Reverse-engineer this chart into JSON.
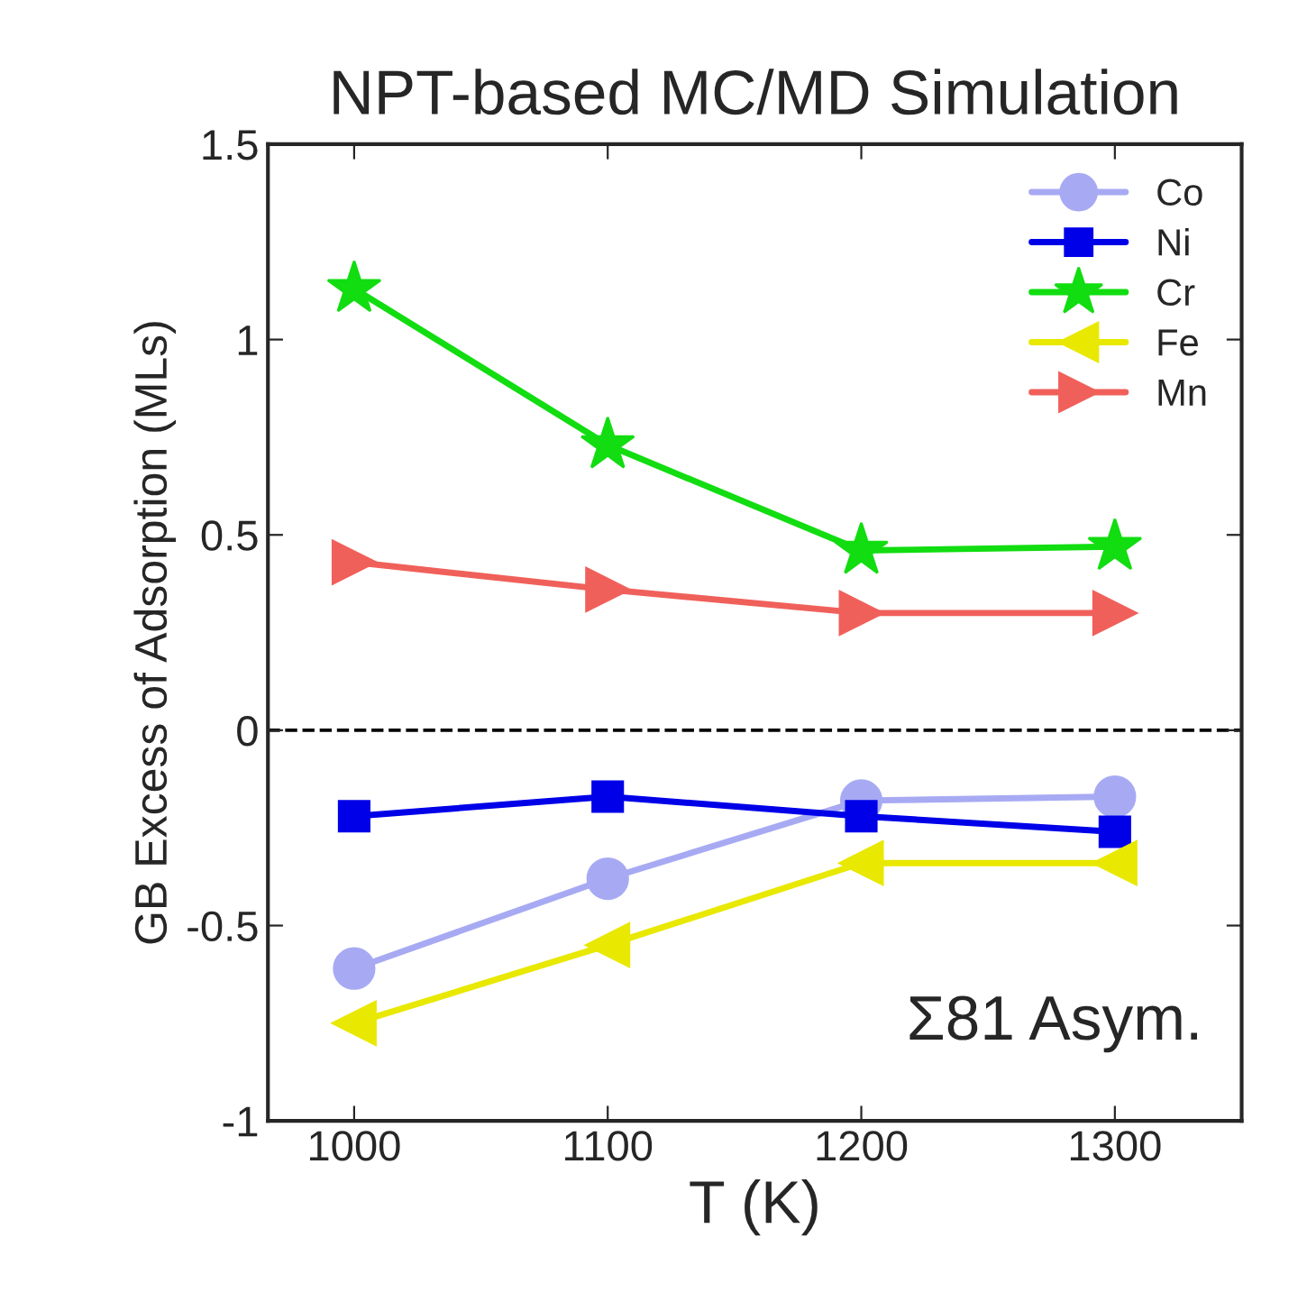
{
  "chart_data": {
    "type": "line",
    "title": "NPT-based MC/MD Simulation",
    "xlabel": "T (K)",
    "ylabel": "GB Excess of Adsorption (MLs)",
    "x": [
      1000,
      1100,
      1200,
      1300
    ],
    "series": [
      {
        "name": "Co",
        "color": "#a7aaf3",
        "marker": "circle",
        "values": [
          -0.61,
          -0.38,
          -0.18,
          -0.17
        ]
      },
      {
        "name": "Ni",
        "color": "#0000e8",
        "marker": "square",
        "values": [
          -0.22,
          -0.17,
          -0.22,
          -0.26
        ]
      },
      {
        "name": "Cr",
        "color": "#11dd11",
        "marker": "star",
        "values": [
          1.13,
          0.73,
          0.46,
          0.47
        ]
      },
      {
        "name": "Fe",
        "color": "#e8e800",
        "marker": "triangle_left",
        "values": [
          -0.75,
          -0.55,
          -0.34,
          -0.34
        ]
      },
      {
        "name": "Mn",
        "color": "#f0605a",
        "marker": "triangle_right",
        "values": [
          0.43,
          0.36,
          0.3,
          0.3
        ]
      }
    ],
    "xlim": [
      966,
      1350
    ],
    "xticks": [
      1000,
      1100,
      1200,
      1300
    ],
    "ylim": [
      -1,
      1.5
    ],
    "yticks": [
      -1,
      -0.5,
      0,
      0.5,
      1,
      1.5
    ],
    "ref_lines": [
      {
        "axis": "y",
        "value": 0,
        "color": "#000000",
        "line_style": "dashed"
      }
    ],
    "annotations": [
      {
        "text": "Σ81 Asym."
      }
    ],
    "legend": "top right",
    "grid": false
  }
}
